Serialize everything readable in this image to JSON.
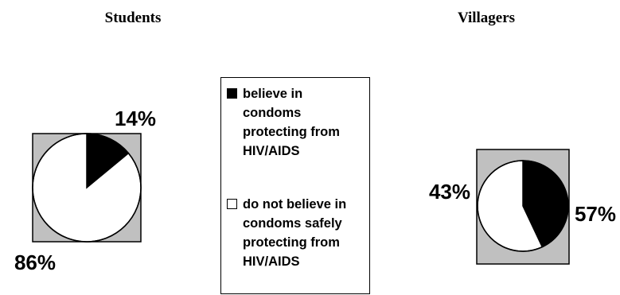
{
  "chart_data": [
    {
      "type": "pie",
      "title": "Students",
      "slices": [
        {
          "label": "believe in condoms protecting from HIV/AIDS",
          "value": 14,
          "display": "14%",
          "color": "#000000"
        },
        {
          "label": "do not believe in condoms safely protecting from HIV/AIDS",
          "value": 86,
          "display": "86%",
          "color": "#ffffff"
        }
      ]
    },
    {
      "type": "pie",
      "title": "Villagers",
      "slices": [
        {
          "label": "believe in condoms protecting from HIV/AIDS",
          "value": 43,
          "display": "43%",
          "color": "#000000"
        },
        {
          "label": "do not believe in condoms safely protecting from HIV/AIDS",
          "value": 57,
          "display": "57%",
          "color": "#ffffff"
        }
      ]
    }
  ],
  "legend": {
    "items": [
      {
        "label": "believe in condoms protecting from HIV/AIDS",
        "color": "#000000"
      },
      {
        "label": "do not believe in condoms safely protecting from HIV/AIDS",
        "color": "#ffffff"
      }
    ]
  },
  "style": {
    "plot_background": "#c0c0c0",
    "outline": "#000000"
  }
}
